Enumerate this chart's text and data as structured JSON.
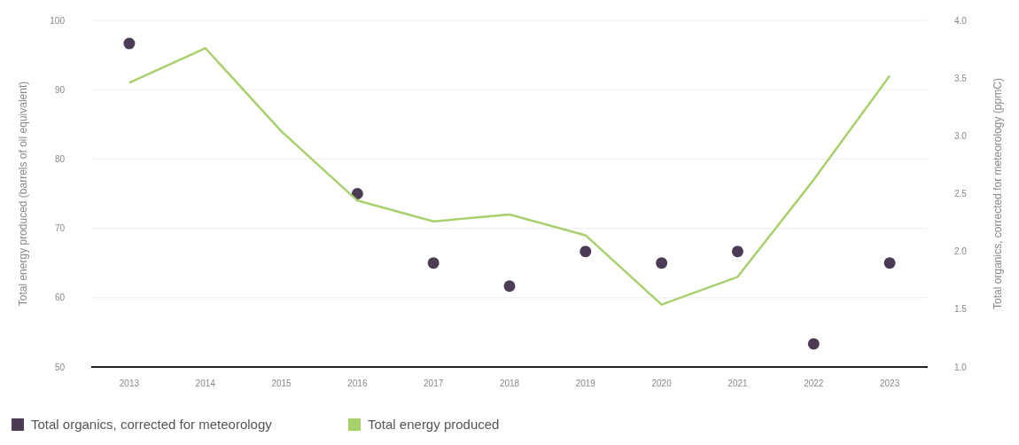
{
  "chart_data": {
    "type": "line",
    "categories": [
      "2013",
      "2014",
      "2015",
      "2016",
      "2017",
      "2018",
      "2019",
      "2020",
      "2021",
      "2022",
      "2023"
    ],
    "series": [
      {
        "name": "Total organics, corrected for meteorology",
        "type": "scatter",
        "marker": "circle",
        "axis": "y2",
        "color": "#4b3b54",
        "values": [
          3.8,
          null,
          null,
          2.5,
          1.9,
          1.7,
          2.0,
          1.9,
          2.0,
          1.2,
          1.9
        ]
      },
      {
        "name": "Total energy produced",
        "color": "#a8d06c",
        "values": [
          91,
          96,
          84,
          74,
          71,
          72,
          69,
          59,
          63,
          77,
          92
        ]
      }
    ],
    "ylabel": "Total energy produced (barrels of oil equivalent)",
    "y2label": "Total organics, corrected for meteorology (ppmC)",
    "ylim": [
      50,
      100
    ],
    "yticks": [
      50,
      60,
      70,
      80,
      90,
      100
    ],
    "y2lim": [
      1.0,
      4.0
    ],
    "y2ticks": [
      {
        "value": 1,
        "label": "1.0"
      },
      1.5,
      {
        "value": 2,
        "label": "2.0"
      },
      2.5,
      {
        "value": 3,
        "label": "3.0"
      },
      3.5,
      {
        "value": 4,
        "label": "4.0"
      }
    ],
    "grid": "y",
    "legend": "bottom left"
  }
}
